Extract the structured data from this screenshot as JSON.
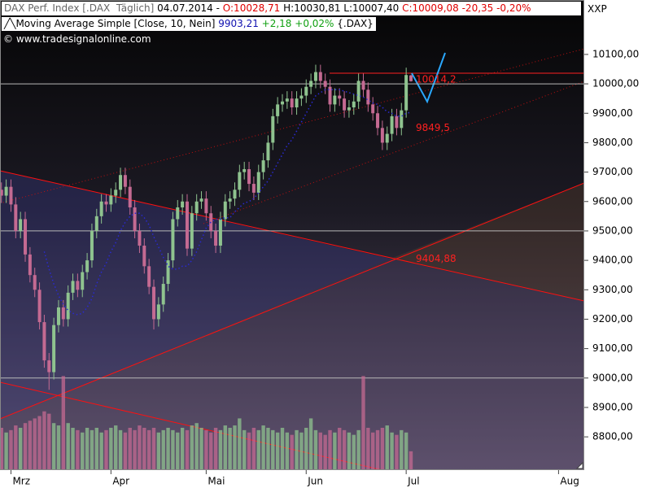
{
  "header": {
    "instrument": "DAX Perf. Index [.DAX  Täglich]",
    "date": "04.07.2014 -",
    "open": "O:10028,71",
    "high_low": "H:10030,81 L:10007,40",
    "close": "C:10009,08 -20,35 -0,20%",
    "axis_name": "XXP",
    "ma_value": "9903,21",
    "ma_change": "+2,18 +0,02%",
    "ma_symbol": "{.DAX}",
    "copyright": "© www.tradesignalonline.com"
  },
  "chart_data": {
    "type": "candlestick",
    "x": [
      0,
      1,
      2,
      3,
      4,
      5,
      6,
      7,
      8,
      9,
      10,
      11,
      12,
      13,
      14,
      15,
      16,
      17,
      18,
      19,
      20,
      21,
      22,
      23,
      24,
      25,
      26,
      27,
      28,
      29,
      30,
      31,
      32,
      33,
      34,
      35,
      36,
      37,
      38,
      39,
      40,
      41,
      42,
      43,
      44,
      45,
      46,
      47,
      48,
      49,
      50,
      51,
      52,
      53,
      54,
      55,
      56,
      57,
      58,
      59,
      60,
      61,
      62,
      63,
      64,
      65,
      66,
      67,
      68,
      69,
      70,
      71,
      72,
      73,
      74,
      75,
      76,
      77,
      78,
      79,
      80,
      81,
      82,
      83,
      84,
      85,
      86
    ],
    "open": [
      9640,
      9620,
      9650,
      9590,
      9500,
      9540,
      9420,
      9350,
      9300,
      9190,
      9060,
      9020,
      9180,
      9240,
      9200,
      9290,
      9330,
      9300,
      9360,
      9400,
      9500,
      9550,
      9600,
      9590,
      9620,
      9640,
      9690,
      9650,
      9580,
      9500,
      9450,
      9380,
      9310,
      9200,
      9250,
      9320,
      9400,
      9540,
      9580,
      9600,
      9440,
      9560,
      9600,
      9610,
      9560,
      9500,
      9450,
      9540,
      9600,
      9610,
      9640,
      9700,
      9710,
      9660,
      9630,
      9700,
      9740,
      9800,
      9890,
      9930,
      9940,
      9950,
      9920,
      9950,
      9960,
      9990,
      10010,
      10040,
      10010,
      9990,
      9930,
      9960,
      9950,
      9910,
      9920,
      9940,
      10010,
      9980,
      9930,
      9900,
      9850,
      9800,
      9830,
      9890,
      9850,
      9910,
      10028.71
    ],
    "high": [
      9665,
      9675,
      9675,
      9615,
      9565,
      9565,
      9445,
      9375,
      9325,
      9215,
      9085,
      9205,
      9265,
      9265,
      9315,
      9355,
      9355,
      9385,
      9425,
      9525,
      9575,
      9625,
      9625,
      9645,
      9665,
      9715,
      9715,
      9675,
      9605,
      9525,
      9475,
      9405,
      9335,
      9275,
      9345,
      9425,
      9565,
      9605,
      9625,
      9625,
      9585,
      9625,
      9635,
      9635,
      9585,
      9525,
      9565,
      9625,
      9635,
      9665,
      9725,
      9735,
      9735,
      9685,
      9725,
      9765,
      9825,
      9915,
      9955,
      9965,
      9975,
      9975,
      9975,
      9985,
      10015,
      10035,
      10065,
      10065,
      10035,
      10015,
      9985,
      9985,
      9975,
      9945,
      9965,
      10035,
      10035,
      10005,
      9955,
      9925,
      9875,
      9855,
      9915,
      9915,
      9935,
      10055,
      10030.81
    ],
    "low": [
      9595,
      9595,
      9565,
      9475,
      9475,
      9395,
      9325,
      9275,
      9165,
      9035,
      8960,
      8995,
      9155,
      9175,
      9175,
      9265,
      9275,
      9275,
      9335,
      9375,
      9475,
      9525,
      9565,
      9565,
      9595,
      9615,
      9625,
      9555,
      9475,
      9425,
      9355,
      9285,
      9165,
      9175,
      9225,
      9295,
      9375,
      9515,
      9555,
      9415,
      9415,
      9535,
      9575,
      9535,
      9475,
      9425,
      9425,
      9515,
      9575,
      9585,
      9615,
      9675,
      9635,
      9605,
      9605,
      9675,
      9715,
      9775,
      9865,
      9905,
      9915,
      9895,
      9895,
      9925,
      9935,
      9965,
      9985,
      9985,
      9965,
      9905,
      9905,
      9925,
      9885,
      9885,
      9895,
      9915,
      9955,
      9905,
      9875,
      9825,
      9775,
      9775,
      9805,
      9825,
      9825,
      9885,
      10007.4
    ],
    "close": [
      9620,
      9650,
      9590,
      9500,
      9540,
      9420,
      9350,
      9300,
      9190,
      9060,
      9020,
      9180,
      9240,
      9200,
      9290,
      9330,
      9300,
      9360,
      9400,
      9500,
      9550,
      9600,
      9590,
      9620,
      9640,
      9690,
      9650,
      9580,
      9500,
      9450,
      9380,
      9310,
      9200,
      9250,
      9320,
      9400,
      9540,
      9580,
      9600,
      9440,
      9560,
      9600,
      9610,
      9560,
      9500,
      9450,
      9540,
      9600,
      9610,
      9640,
      9700,
      9710,
      9660,
      9630,
      9700,
      9740,
      9800,
      9890,
      9930,
      9940,
      9950,
      9920,
      9950,
      9960,
      9990,
      10010,
      10040,
      10010,
      9990,
      9930,
      9960,
      9950,
      9910,
      9920,
      9940,
      10010,
      9980,
      9930,
      9900,
      9850,
      9800,
      9830,
      9890,
      9850,
      9910,
      10030,
      10009.08
    ],
    "up_color": "#8fc38f",
    "down_color": "#c46a92",
    "ma": {
      "name": "Moving Average Simple [Close, 10, Nein]",
      "color": "#2a2ad0",
      "values": [
        null,
        null,
        null,
        null,
        null,
        null,
        null,
        null,
        null,
        9430,
        9370,
        9320,
        9280,
        9250,
        9230,
        9220,
        9215,
        9220,
        9240,
        9270,
        9320,
        9360,
        9390,
        9430,
        9460,
        9500,
        9530,
        9550,
        9560,
        9560,
        9545,
        9520,
        9480,
        9445,
        9410,
        9380,
        9370,
        9370,
        9380,
        9380,
        9400,
        9430,
        9470,
        9510,
        9530,
        9540,
        9540,
        9545,
        9545,
        9565,
        9580,
        9595,
        9600,
        9610,
        9630,
        9650,
        9670,
        9700,
        9730,
        9760,
        9790,
        9810,
        9840,
        9870,
        9900,
        9930,
        9960,
        9970,
        9980,
        9980,
        9980,
        9980,
        9975,
        9970,
        9965,
        9960,
        9955,
        9945,
        9935,
        9930,
        9920,
        9905,
        9900,
        9890,
        9890,
        9900,
        9903.21
      ]
    },
    "volume": {
      "axis": "y2",
      "values": [
        18,
        16,
        17,
        19,
        18,
        20,
        21,
        22,
        23,
        25,
        24,
        20,
        19,
        40,
        20,
        18,
        17,
        16,
        18,
        17,
        18,
        16,
        17,
        18,
        19,
        17,
        16,
        18,
        17,
        19,
        18,
        17,
        18,
        16,
        17,
        18,
        17,
        16,
        18,
        17,
        19,
        20,
        18,
        17,
        16,
        18,
        17,
        19,
        18,
        19,
        22,
        17,
        16,
        18,
        17,
        19,
        18,
        17,
        16,
        18,
        16,
        15,
        17,
        16,
        18,
        22,
        17,
        16,
        15,
        17,
        16,
        18,
        17,
        16,
        15,
        17,
        40,
        18,
        16,
        17,
        18,
        19,
        16,
        15,
        17,
        16,
        8
      ]
    },
    "y2lim": [
      0,
      200
    ],
    "xlim": [
      -0.3,
      122.4
    ],
    "xticks": [
      {
        "value": 2,
        "label": "Mrz"
      },
      {
        "value": 23,
        "label": "Apr"
      },
      {
        "value": 43,
        "label": "Mai"
      },
      {
        "value": 64,
        "label": "Jun"
      },
      {
        "value": 85,
        "label": "Jul"
      },
      {
        "value": 117,
        "label": "Aug"
      }
    ],
    "ylim": [
      8687,
      10285
    ],
    "yticks": [
      {
        "value": 8800,
        "label": "8800,00"
      },
      {
        "value": 8900,
        "label": "8900,00"
      },
      {
        "value": 9000,
        "label": "9000,00"
      },
      {
        "value": 9100,
        "label": "9100,00"
      },
      {
        "value": 9200,
        "label": "9200,00"
      },
      {
        "value": 9300,
        "label": "9300,00"
      },
      {
        "value": 9400,
        "label": "9400,00"
      },
      {
        "value": 9500,
        "label": "9500,00"
      },
      {
        "value": 9600,
        "label": "9600,00"
      },
      {
        "value": 9700,
        "label": "9700,00"
      },
      {
        "value": 9800,
        "label": "9800,00"
      },
      {
        "value": 9900,
        "label": "9900,00"
      },
      {
        "value": 10000,
        "label": "10000,00"
      },
      {
        "value": 10100,
        "label": "10100,00"
      }
    ],
    "hlines": [
      10000,
      9500,
      9000
    ],
    "annotations": [
      {
        "value": 10014.2,
        "label": "10014,2"
      },
      {
        "value": 9849.5,
        "label": "9849,5"
      },
      {
        "value": 9404.88,
        "label": "9404,88"
      }
    ]
  }
}
